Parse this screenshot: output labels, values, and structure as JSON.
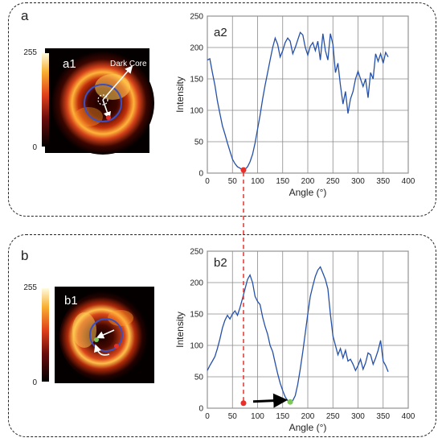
{
  "panels": {
    "a": {
      "label": "a",
      "image_label": "a1",
      "colorbar_max": "255",
      "colorbar_min": "0",
      "annotation": "Dark Core",
      "chart_label": "a2"
    },
    "b": {
      "label": "b",
      "image_label": "b1",
      "colorbar_max": "255",
      "colorbar_min": "0",
      "chart_label": "b2"
    }
  },
  "colors": {
    "line": "#2550a8",
    "red_marker": "#e8302a",
    "green_marker": "#7ec85a",
    "connector": "#e8302a"
  },
  "chart_data": [
    {
      "type": "line",
      "title": "",
      "xlabel": "Angle (°)",
      "ylabel": "Intensity",
      "xlim": [
        0,
        400
      ],
      "ylim": [
        0,
        250
      ],
      "xticks": [
        0,
        50,
        100,
        150,
        200,
        250,
        300,
        350,
        400
      ],
      "yticks": [
        0,
        50,
        100,
        150,
        200,
        250
      ],
      "grid": true,
      "series": [
        {
          "x": [
            0,
            5,
            10,
            15,
            20,
            25,
            30,
            35,
            40,
            45,
            50,
            55,
            60,
            65,
            70,
            75,
            80,
            85,
            90,
            95,
            100,
            105,
            110,
            115,
            120,
            125,
            130,
            135,
            140,
            145,
            150,
            155,
            160,
            165,
            170,
            175,
            180,
            185,
            190,
            195,
            200,
            205,
            210,
            215,
            220,
            225,
            230,
            235,
            240,
            245,
            250,
            255,
            260,
            265,
            270,
            275,
            280,
            285,
            290,
            295,
            300,
            305,
            310,
            315,
            320,
            325,
            330,
            335,
            340,
            345,
            350,
            355,
            360
          ],
          "y": [
            180,
            182,
            160,
            140,
            115,
            95,
            75,
            62,
            48,
            35,
            22,
            15,
            10,
            8,
            5,
            6,
            10,
            18,
            30,
            48,
            70,
            92,
            118,
            140,
            160,
            180,
            200,
            215,
            205,
            185,
            195,
            208,
            215,
            210,
            190,
            200,
            212,
            224,
            220,
            200,
            188,
            202,
            208,
            195,
            210,
            180,
            222,
            195,
            180,
            222,
            205,
            160,
            175,
            140,
            110,
            130,
            95,
            118,
            130,
            150,
            162,
            150,
            138,
            150,
            120,
            160,
            150,
            190,
            178,
            190,
            175,
            192,
            185
          ]
        }
      ],
      "markers": [
        {
          "x": 72,
          "y": 5,
          "color": "red"
        }
      ]
    },
    {
      "type": "line",
      "title": "",
      "xlabel": "Angle (°)",
      "ylabel": "Intensity",
      "xlim": [
        0,
        400
      ],
      "ylim": [
        0,
        250
      ],
      "xticks": [
        0,
        50,
        100,
        150,
        200,
        250,
        300,
        350,
        400
      ],
      "yticks": [
        0,
        50,
        100,
        150,
        200,
        250
      ],
      "grid": true,
      "series": [
        {
          "x": [
            0,
            5,
            10,
            15,
            20,
            25,
            30,
            35,
            40,
            45,
            50,
            55,
            60,
            65,
            70,
            75,
            80,
            85,
            90,
            95,
            100,
            105,
            110,
            115,
            120,
            125,
            130,
            135,
            140,
            145,
            150,
            155,
            160,
            165,
            170,
            175,
            180,
            185,
            190,
            195,
            200,
            205,
            210,
            215,
            220,
            225,
            230,
            235,
            240,
            245,
            250,
            255,
            260,
            265,
            270,
            275,
            280,
            285,
            290,
            295,
            300,
            305,
            310,
            315,
            320,
            325,
            330,
            335,
            340,
            345,
            350,
            355,
            360
          ],
          "y": [
            60,
            68,
            75,
            82,
            95,
            110,
            128,
            140,
            148,
            142,
            150,
            155,
            148,
            160,
            175,
            190,
            205,
            212,
            200,
            178,
            170,
            165,
            145,
            130,
            118,
            100,
            90,
            72,
            55,
            40,
            28,
            18,
            12,
            10,
            12,
            20,
            38,
            62,
            90,
            120,
            150,
            178,
            195,
            210,
            220,
            225,
            215,
            205,
            190,
            150,
            115,
            100,
            85,
            95,
            80,
            92,
            75,
            78,
            70,
            60,
            68,
            78,
            62,
            72,
            88,
            85,
            70,
            80,
            92,
            108,
            75,
            68,
            58
          ]
        }
      ],
      "markers": [
        {
          "x": 72,
          "y": 8,
          "color": "red"
        },
        {
          "x": 165,
          "y": 10,
          "color": "green"
        }
      ]
    }
  ]
}
